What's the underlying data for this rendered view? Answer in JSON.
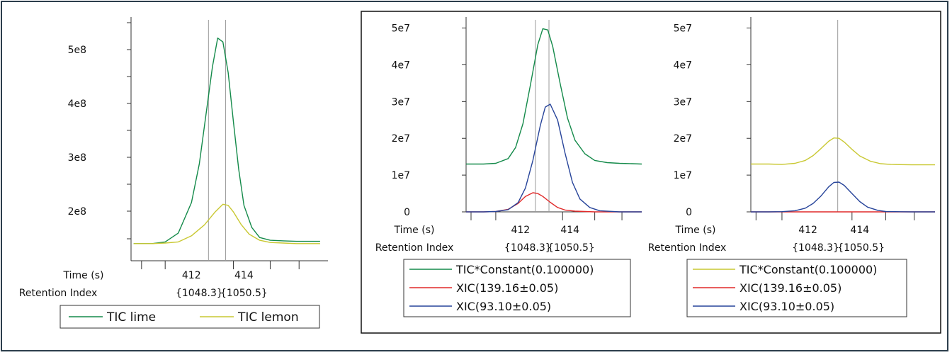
{
  "chart_data": [
    {
      "type": "line",
      "title": "",
      "xlabel": "Time (s)",
      "secondary_xlabel": "Retention Index",
      "ylabel": "",
      "x_ticks": [
        "412",
        "414"
      ],
      "ri_ticks": [
        "{1048.3}",
        "{1050.5}"
      ],
      "y_ticks": [
        "2e8",
        "3e8",
        "4e8",
        "5e8"
      ],
      "xlim": [
        409.7,
        417.2
      ],
      "ylim": [
        100000000,
        540000000
      ],
      "marker_lines_x": [
        412.65,
        413.3
      ],
      "legend_layout": "horizontal below",
      "series": [
        {
          "name": "TIC lime",
          "color": "#148a4a",
          "x": [
            409.8,
            410.5,
            411.0,
            411.5,
            412.0,
            412.3,
            412.6,
            412.8,
            413.0,
            413.2,
            413.4,
            413.6,
            413.8,
            414.0,
            414.3,
            414.6,
            415.0,
            415.5,
            416.0,
            416.5,
            416.9
          ],
          "y": [
            131000000,
            131000000,
            134000000,
            150000000,
            205000000,
            275000000,
            380000000,
            450000000,
            502000000,
            495000000,
            440000000,
            350000000,
            265000000,
            200000000,
            160000000,
            142000000,
            137000000,
            136000000,
            135000000,
            135000000,
            135000000
          ]
        },
        {
          "name": "TIC lemon",
          "color": "#c9c832",
          "x": [
            409.8,
            410.5,
            411.0,
            411.5,
            412.0,
            412.5,
            412.9,
            413.2,
            413.4,
            413.6,
            413.9,
            414.2,
            414.6,
            415.0,
            415.5,
            416.0,
            416.5,
            416.9
          ],
          "y": [
            131000000,
            131000000,
            132000000,
            134000000,
            145000000,
            165000000,
            188000000,
            202000000,
            200000000,
            188000000,
            165000000,
            148000000,
            137000000,
            133000000,
            132000000,
            131000000,
            131000000,
            131000000
          ]
        }
      ]
    },
    {
      "type": "line",
      "title": "",
      "xlabel": "Time (s)",
      "secondary_xlabel": "Retention Index",
      "ylabel": "",
      "x_ticks": [
        "412",
        "414"
      ],
      "ri_ticks": [
        "{1048.3}",
        "{1050.5}"
      ],
      "y_ticks": [
        "0",
        "1e7",
        "2e7",
        "3e7",
        "4e7",
        "5e7"
      ],
      "xlim": [
        409.8,
        416.9
      ],
      "ylim": [
        0,
        53000000
      ],
      "marker_lines_x": [
        412.6,
        413.15
      ],
      "legend_layout": "vertical below",
      "series": [
        {
          "name": "TIC*Constant(0.100000)",
          "color": "#148a4a",
          "x": [
            409.8,
            410.5,
            411.0,
            411.5,
            411.8,
            412.1,
            412.4,
            412.7,
            412.9,
            413.1,
            413.3,
            413.6,
            413.9,
            414.2,
            414.6,
            415.0,
            415.5,
            416.0,
            416.5,
            416.9
          ],
          "y": [
            13000000,
            13000000,
            13200000,
            14500000,
            17500000,
            24000000,
            34500000,
            45500000,
            49800000,
            49500000,
            45000000,
            35000000,
            25500000,
            19500000,
            15800000,
            14000000,
            13400000,
            13200000,
            13100000,
            13000000
          ]
        },
        {
          "name": "XIC(139.16±0.05)",
          "color": "#e02a2a",
          "x": [
            409.8,
            410.5,
            411.0,
            411.5,
            411.9,
            412.2,
            412.5,
            412.7,
            412.9,
            413.2,
            413.5,
            413.8,
            414.2,
            414.6,
            415.0,
            416.0,
            416.9
          ],
          "y": [
            0,
            0,
            100000,
            700000,
            2300000,
            4200000,
            5200000,
            5000000,
            4200000,
            2600000,
            1200000,
            500000,
            200000,
            100000,
            0,
            0,
            0
          ]
        },
        {
          "name": "XIC(93.10±0.05)",
          "color": "#27449a",
          "x": [
            409.8,
            410.5,
            411.0,
            411.5,
            411.9,
            412.2,
            412.5,
            412.8,
            413.0,
            413.2,
            413.5,
            413.8,
            414.1,
            414.4,
            414.8,
            415.2,
            416.0,
            416.9
          ],
          "y": [
            0,
            0,
            100000,
            600000,
            2500000,
            6500000,
            14000000,
            23500000,
            28500000,
            29300000,
            25000000,
            16000000,
            8000000,
            3500000,
            1200000,
            300000,
            0,
            0
          ]
        }
      ]
    },
    {
      "type": "line",
      "title": "",
      "xlabel": "Time (s)",
      "secondary_xlabel": "Retention Index",
      "ylabel": "",
      "x_ticks": [
        "412",
        "414"
      ],
      "ri_ticks": [
        "{1048.3}",
        "{1050.5}"
      ],
      "y_ticks": [
        "0",
        "1e7",
        "2e7",
        "3e7",
        "4e7",
        "5e7"
      ],
      "xlim": [
        409.8,
        416.9
      ],
      "ylim": [
        0,
        53000000
      ],
      "marker_lines_x": [
        413.15
      ],
      "legend_layout": "vertical below",
      "series": [
        {
          "name": "TIC*Constant(0.100000)",
          "color": "#c9c832",
          "x": [
            409.8,
            410.5,
            411.0,
            411.5,
            411.9,
            412.2,
            412.5,
            412.8,
            413.0,
            413.2,
            413.4,
            413.7,
            414.0,
            414.4,
            414.8,
            415.2,
            416.0,
            416.9
          ],
          "y": [
            13000000,
            13000000,
            12900000,
            13200000,
            14000000,
            15300000,
            17200000,
            19200000,
            20100000,
            20000000,
            19000000,
            17000000,
            15200000,
            13800000,
            13100000,
            12900000,
            12800000,
            12800000
          ]
        },
        {
          "name": "XIC(139.16±0.05)",
          "color": "#e02a2a",
          "x": [
            409.8,
            416.9
          ],
          "y": [
            0,
            0
          ]
        },
        {
          "name": "XIC(93.10±0.05)",
          "color": "#27449a",
          "x": [
            409.8,
            410.5,
            411.0,
            411.5,
            411.9,
            412.2,
            412.5,
            412.8,
            413.0,
            413.2,
            413.4,
            413.7,
            414.0,
            414.3,
            414.7,
            415.0,
            416.0,
            416.9
          ],
          "y": [
            0,
            0,
            50000,
            300000,
            1000000,
            2300000,
            4300000,
            6800000,
            8000000,
            8100000,
            7200000,
            5000000,
            2800000,
            1300000,
            400000,
            100000,
            0,
            0
          ]
        }
      ]
    }
  ]
}
